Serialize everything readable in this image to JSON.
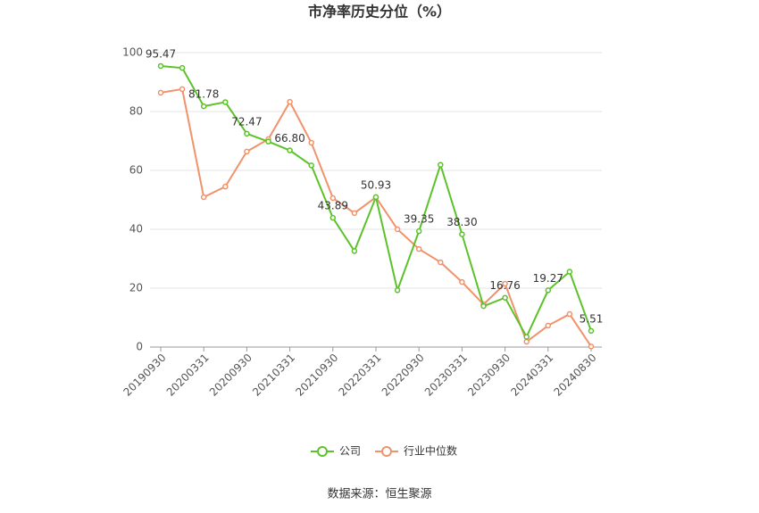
{
  "chart_data": {
    "type": "line",
    "title": "市净率历史分位（%）",
    "categories": [
      "20190930",
      null,
      "20200331",
      null,
      "20200930",
      null,
      "20210331",
      null,
      "20210930",
      null,
      "20220331",
      null,
      "20220930",
      null,
      "20230331",
      null,
      "20230930",
      null,
      "20240331",
      null,
      "20240830"
    ],
    "series": [
      {
        "name": "公司",
        "color": "#5cc22a",
        "values": [
          95.47,
          94.8,
          81.78,
          83.2,
          72.47,
          69.8,
          66.8,
          61.7,
          43.89,
          32.6,
          50.93,
          19.3,
          39.35,
          61.9,
          38.3,
          13.9,
          16.76,
          3.5,
          19.27,
          25.6,
          5.51
        ],
        "value_labels": [
          "95.47",
          null,
          "81.78",
          null,
          "72.47",
          null,
          "66.80",
          null,
          "43.89",
          null,
          "50.93",
          null,
          "39.35",
          null,
          "38.30",
          null,
          "16.76",
          null,
          "19.27",
          null,
          "5.51"
        ]
      },
      {
        "name": "行业中位数",
        "color": "#f0926a",
        "values": [
          86.4,
          87.6,
          50.9,
          54.5,
          66.4,
          70.6,
          83.3,
          69.4,
          50.6,
          45.5,
          50.9,
          40.0,
          33.3,
          28.8,
          22.1,
          14.5,
          21.5,
          1.8,
          7.3,
          11.2,
          0.2
        ]
      }
    ],
    "ylim": [
      0,
      100
    ],
    "yticks": [
      0,
      20,
      40,
      60,
      80,
      100
    ],
    "grid": true,
    "legend": "bottom",
    "source": "数据来源：恒生聚源"
  }
}
